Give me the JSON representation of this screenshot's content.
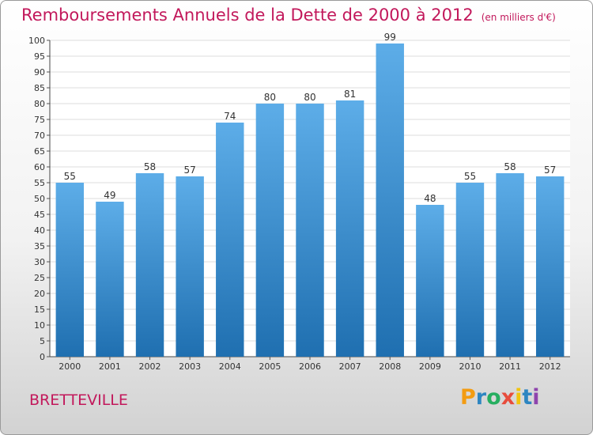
{
  "header": {
    "title": "Remboursements Annuels de la Dette de 2000 à 2012",
    "subtitle": "(en milliers d'€)"
  },
  "footer": {
    "commune": "BRETTEVILLE",
    "logo_letters": [
      "P",
      "r",
      "o",
      "x",
      "i",
      "t",
      "i"
    ],
    "logo_colors": [
      "#f39c12",
      "#2e86c1",
      "#27ae60",
      "#e74c3c",
      "#f1c40f",
      "#2e86c1",
      "#8e44ad"
    ]
  },
  "colors": {
    "title": "#c2185b",
    "bar_top": "#5dade8",
    "bar_bottom": "#1f6fb0",
    "grid": "#dddddd"
  },
  "chart_data": {
    "type": "bar",
    "title": "Remboursements Annuels de la Dette de 2000 à 2012",
    "subtitle": "(en milliers d'€)",
    "categories": [
      "2000",
      "2001",
      "2002",
      "2003",
      "2004",
      "2005",
      "2006",
      "2007",
      "2008",
      "2009",
      "2010",
      "2011",
      "2012"
    ],
    "values": [
      55,
      49,
      58,
      57,
      74,
      80,
      80,
      81,
      99,
      48,
      55,
      58,
      57
    ],
    "ylim": [
      0,
      100
    ],
    "ytick_step": 5,
    "grid": true,
    "data_labels": true
  }
}
